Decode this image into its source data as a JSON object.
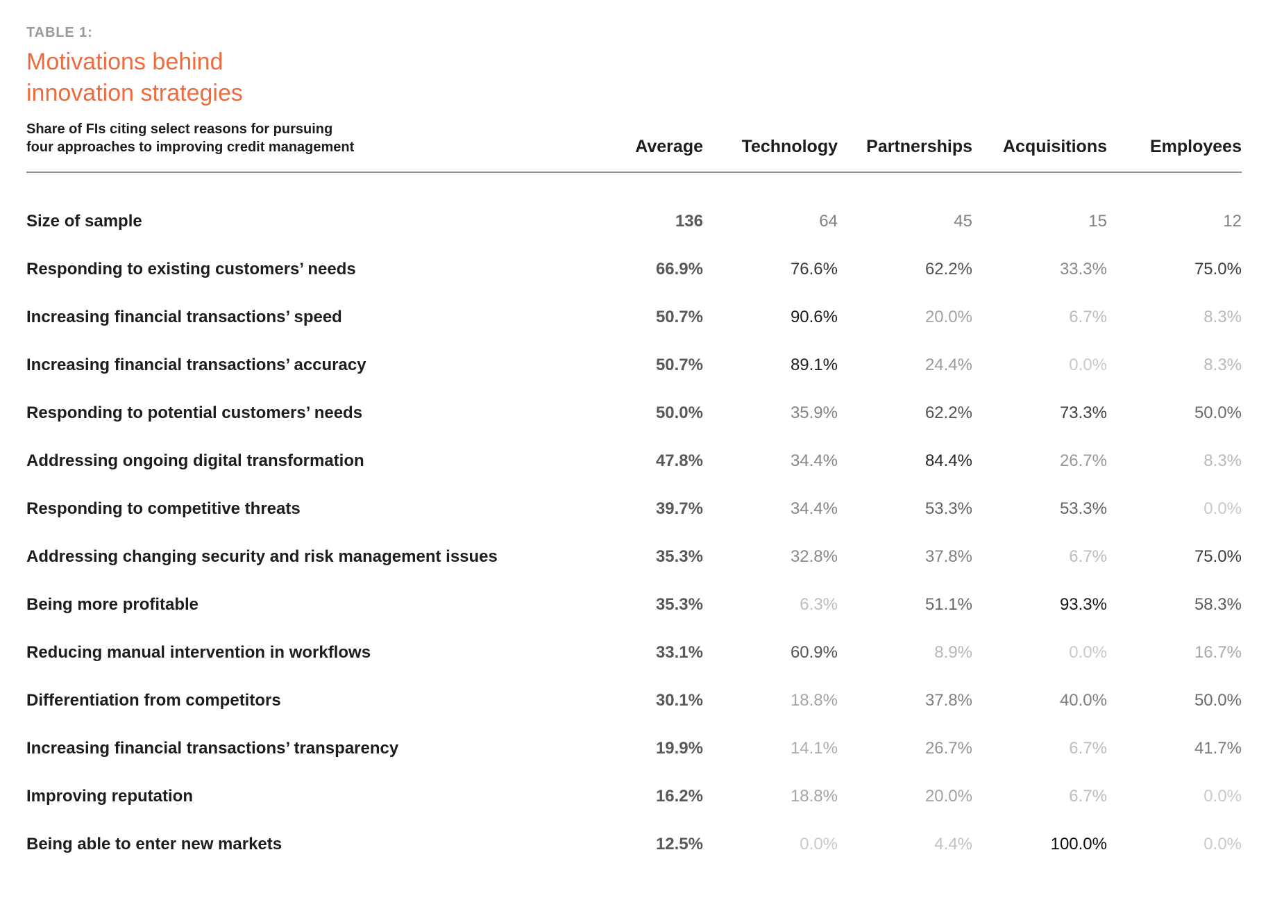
{
  "page": {
    "eyebrow": "TABLE 1:",
    "title_line1": "Motivations behind",
    "title_line2": "innovation strategies",
    "subtitle_line1": "Share of FIs citing select reasons for pursuing",
    "subtitle_line2": "four approaches to improving credit management"
  },
  "colors": {
    "accent_orange": "#ED6B3D",
    "eyebrow_gray": "#97999C",
    "rule_gray": "#8E8E8E",
    "text_black": "#1D1D1F",
    "average_value_gray": "#58595B",
    "sample_count_gray": "#808285",
    "value_ramp_light": "#C9C9C9",
    "value_ramp_dark": "#0A0A0A"
  },
  "chart_data": {
    "type": "table",
    "title": "Motivations behind innovation strategies",
    "subtitle": "Share of FIs citing select reasons for pursuing four approaches to improving credit management",
    "value_shading": "higher percentages rendered darker, lower percentages lighter gray",
    "columns": [
      "Average",
      "Technology",
      "Partnerships",
      "Acquisitions",
      "Employees"
    ],
    "rows": [
      {
        "label": "Size of sample",
        "type": "count",
        "values": [
          136,
          64,
          45,
          15,
          12
        ]
      },
      {
        "label": "Responding to existing customers’ needs",
        "type": "percent",
        "values": [
          66.9,
          76.6,
          62.2,
          33.3,
          75.0
        ]
      },
      {
        "label": "Increasing financial transactions’ speed",
        "type": "percent",
        "values": [
          50.7,
          90.6,
          20.0,
          6.7,
          8.3
        ]
      },
      {
        "label": "Increasing financial transactions’ accuracy",
        "type": "percent",
        "values": [
          50.7,
          89.1,
          24.4,
          0.0,
          8.3
        ]
      },
      {
        "label": "Responding to potential customers’ needs",
        "type": "percent",
        "values": [
          50.0,
          35.9,
          62.2,
          73.3,
          50.0
        ]
      },
      {
        "label": "Addressing ongoing digital transformation",
        "type": "percent",
        "values": [
          47.8,
          34.4,
          84.4,
          26.7,
          8.3
        ]
      },
      {
        "label": "Responding to competitive threats",
        "type": "percent",
        "values": [
          39.7,
          34.4,
          53.3,
          53.3,
          0.0
        ]
      },
      {
        "label": "Addressing changing security and risk management issues",
        "type": "percent",
        "values": [
          35.3,
          32.8,
          37.8,
          6.7,
          75.0
        ]
      },
      {
        "label": "Being more profitable",
        "type": "percent",
        "values": [
          35.3,
          6.3,
          51.1,
          93.3,
          58.3
        ]
      },
      {
        "label": "Reducing manual intervention in workflows",
        "type": "percent",
        "values": [
          33.1,
          60.9,
          8.9,
          0.0,
          16.7
        ]
      },
      {
        "label": "Differentiation from competitors",
        "type": "percent",
        "values": [
          30.1,
          18.8,
          37.8,
          40.0,
          50.0
        ]
      },
      {
        "label": "Increasing financial transactions’ transparency",
        "type": "percent",
        "values": [
          19.9,
          14.1,
          26.7,
          6.7,
          41.7
        ]
      },
      {
        "label": "Improving reputation",
        "type": "percent",
        "values": [
          16.2,
          18.8,
          20.0,
          6.7,
          0.0
        ]
      },
      {
        "label": "Being able to enter new markets",
        "type": "percent",
        "values": [
          12.5,
          0.0,
          4.4,
          100.0,
          0.0
        ]
      }
    ]
  }
}
